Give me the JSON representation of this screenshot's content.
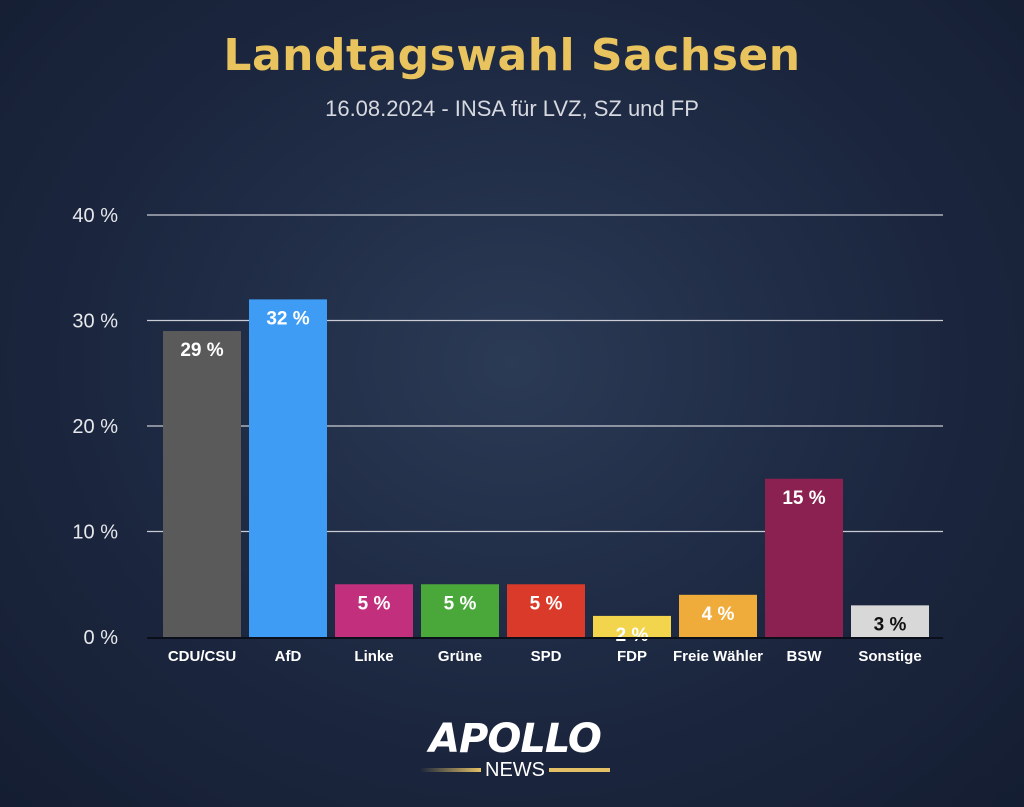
{
  "chart_data": {
    "type": "bar",
    "title": "Landtagswahl Sachsen",
    "subtitle": "16.08.2024 - INSA für LVZ, SZ und FP",
    "categories": [
      "CDU/CSU",
      "AfD",
      "Linke",
      "Grüne",
      "SPD",
      "FDP",
      "Freie Wähler",
      "BSW",
      "Sonstige"
    ],
    "values": [
      29,
      32,
      5,
      5,
      5,
      2,
      4,
      15,
      3
    ],
    "data_labels": [
      "29 %",
      "32 %",
      "5 %",
      "5 %",
      "5 %",
      "2 %",
      "4 %",
      "15 %",
      "3 %"
    ],
    "colors": [
      "#5a5a5a",
      "#3f9cf5",
      "#c2307d",
      "#4aa83a",
      "#d93a2a",
      "#f2d54c",
      "#f0ac3a",
      "#8a2150",
      "#d8d8d8"
    ],
    "label_colors": [
      "#ffffff",
      "#ffffff",
      "#ffffff",
      "#ffffff",
      "#ffffff",
      "#ffffff",
      "#ffffff",
      "#ffffff",
      "#111111"
    ],
    "ylim": [
      0,
      40
    ],
    "yticks": [
      0,
      10,
      20,
      30,
      40
    ],
    "ytick_labels": [
      "0 %",
      "10 %",
      "20 %",
      "30 %",
      "40 %"
    ],
    "grid": true,
    "xlabel": "",
    "ylabel": ""
  },
  "logo": {
    "brand": "APOLLO",
    "sub": "NEWS"
  }
}
